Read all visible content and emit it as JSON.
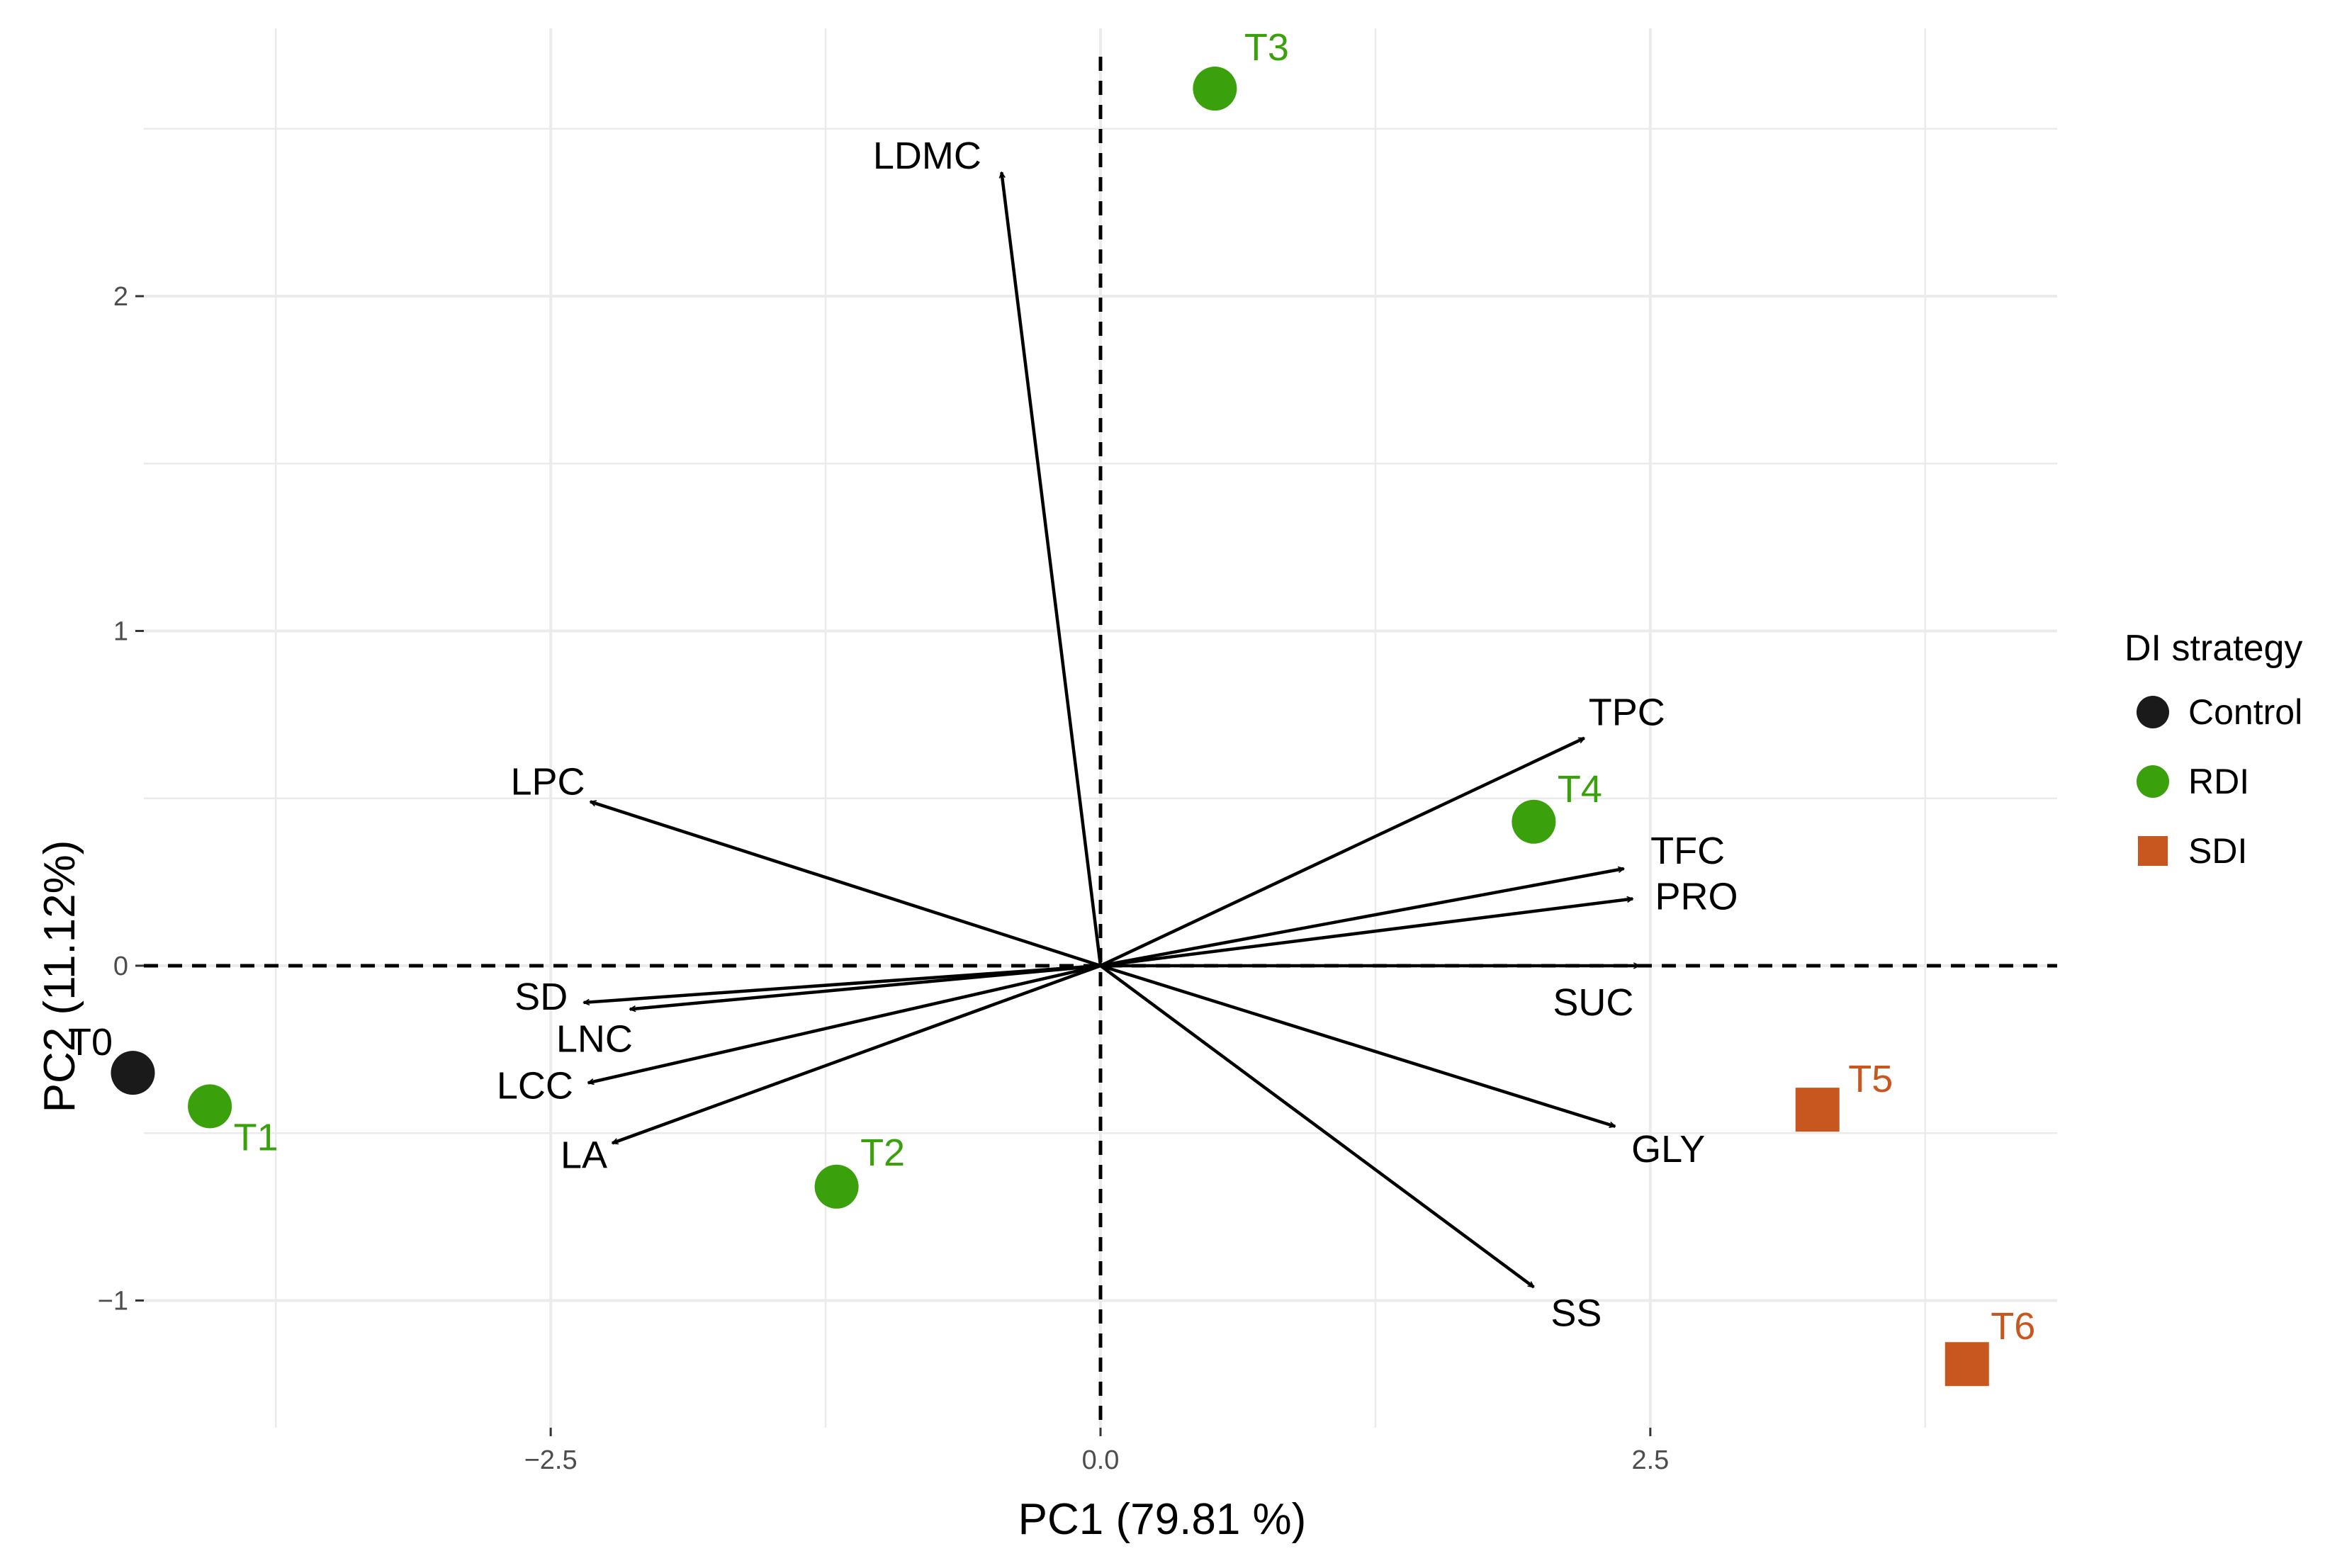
{
  "chart_data": {
    "type": "scatter",
    "subtype": "pca-biplot",
    "xlabel": "PC1 (79.81  %)",
    "ylabel": "PC2 (11.12%)",
    "xlim": [
      -4.35,
      4.35
    ],
    "ylim": [
      -1.38,
      2.8
    ],
    "xticks": [
      -2.5,
      0.0,
      2.5
    ],
    "xtick_labels": [
      "−2.5",
      "0.0",
      "2.5"
    ],
    "yticks": [
      -1,
      0,
      1,
      2
    ],
    "ytick_labels": [
      "−1",
      "0",
      "1",
      "2"
    ],
    "grid": true,
    "reference_lines": "dashed lines at x = 0 and y = 0",
    "legend": {
      "title": "DI strategy",
      "position": "right",
      "items": [
        {
          "name": "Control",
          "shape": "circle",
          "color": "#1a1a1a"
        },
        {
          "name": "RDI",
          "shape": "circle",
          "color": "#3aa00c"
        },
        {
          "name": "SDI",
          "shape": "square",
          "color": "#c8561f"
        }
      ]
    },
    "points": [
      {
        "label": "T0",
        "group": "Control",
        "x": -4.4,
        "y": -0.32
      },
      {
        "label": "T1",
        "group": "RDI",
        "x": -4.05,
        "y": -0.42
      },
      {
        "label": "T2",
        "group": "RDI",
        "x": -1.2,
        "y": -0.66
      },
      {
        "label": "T3",
        "group": "RDI",
        "x": 0.52,
        "y": 2.62
      },
      {
        "label": "T4",
        "group": "RDI",
        "x": 1.97,
        "y": 0.43
      },
      {
        "label": "T5",
        "group": "SDI",
        "x": 3.26,
        "y": -0.43
      },
      {
        "label": "T6",
        "group": "SDI",
        "x": 3.94,
        "y": -1.19
      }
    ],
    "loadings": [
      {
        "name": "LDMC",
        "x": -0.45,
        "y": 2.37
      },
      {
        "name": "LPC",
        "x": -2.32,
        "y": 0.49
      },
      {
        "name": "SD",
        "x": -2.35,
        "y": -0.11
      },
      {
        "name": "LNC",
        "x": -2.14,
        "y": -0.13
      },
      {
        "name": "LCC",
        "x": -2.33,
        "y": -0.35
      },
      {
        "name": "LA",
        "x": -2.22,
        "y": -0.53
      },
      {
        "name": "TPC",
        "x": 2.2,
        "y": 0.68
      },
      {
        "name": "TFC",
        "x": 2.38,
        "y": 0.29
      },
      {
        "name": "PRO",
        "x": 2.42,
        "y": 0.2
      },
      {
        "name": "SUC",
        "x": 2.45,
        "y": 0.0
      },
      {
        "name": "GLY",
        "x": 2.34,
        "y": -0.48
      },
      {
        "name": "SS",
        "x": 1.97,
        "y": -0.96
      }
    ]
  }
}
